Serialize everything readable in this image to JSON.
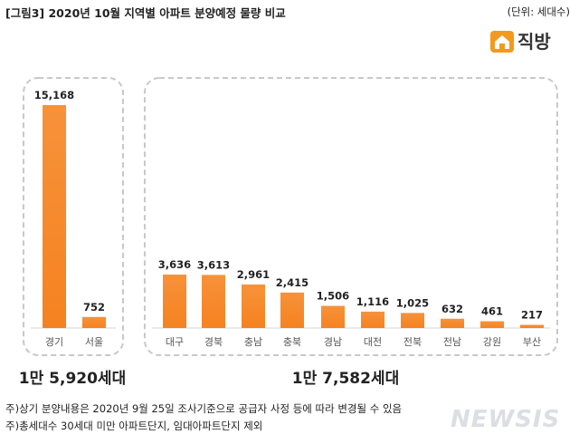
{
  "header": {
    "title": "[그림3] 2020년 10월 지역별 아파트 분양예정 물량 비교",
    "unit": "(단위: 세대수)"
  },
  "brand": {
    "name": "직방",
    "icon": "house-logo-icon",
    "color": "#f29a1f"
  },
  "chart_data": {
    "type": "bar",
    "bar_color": "#f58220",
    "groups": [
      {
        "categories": [
          "경기",
          "서울"
        ],
        "values": [
          15168,
          752
        ],
        "value_labels": [
          "15,168",
          "752"
        ],
        "total_label": "1만 5,920세대"
      },
      {
        "categories": [
          "대구",
          "경북",
          "충남",
          "충북",
          "경남",
          "대전",
          "전북",
          "전남",
          "강원",
          "부산"
        ],
        "values": [
          3636,
          3613,
          2961,
          2415,
          1506,
          1116,
          1025,
          632,
          461,
          217
        ],
        "value_labels": [
          "3,636",
          "3,613",
          "2,961",
          "2,415",
          "1,506",
          "1,116",
          "1,025",
          "632",
          "461",
          "217"
        ],
        "total_label": "1만 7,582세대"
      }
    ],
    "ylim": [
      0,
      15168
    ],
    "grid": false
  },
  "notes": [
    "주)상기 분양내용은 2020년 9월 25일 조사기준으로 공급자 사정 등에 따라 변경될 수 있음",
    "주)총세대수 30세대 미만 아파트단지, 임대아파트단지 제외"
  ],
  "watermark": "NEWSIS"
}
